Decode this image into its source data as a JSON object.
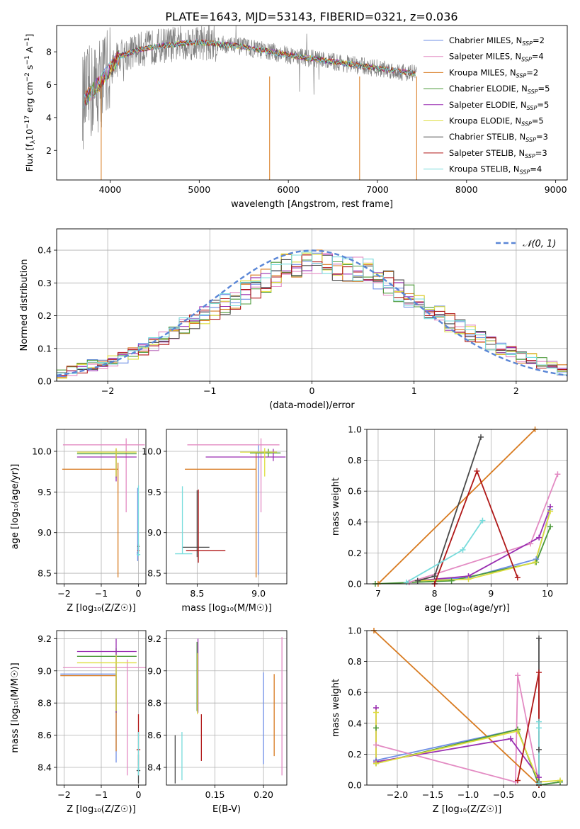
{
  "title": "PLATE=1643, MJD=53143, FIBERID=0321, z=0.036",
  "colors": {
    "Chabrier MILES": "#6f8fe6",
    "Salpeter MILES": "#e38bc3",
    "Kroupa MILES": "#d87a1f",
    "Chabrier ELODIE": "#4c9a3a",
    "Salpeter ELODIE": "#9a2fb2",
    "Kroupa ELODIE": "#dede3e",
    "Chabrier STELIB": "#4a4a4a",
    "Salpeter STELIB": "#b01818",
    "Kroupa STELIB": "#78dcdc"
  },
  "chart_data": [
    {
      "id": "spectrum",
      "type": "line",
      "xlabel": "wavelength [Angstrom, rest frame]",
      "ylabel": "Flux [f",
      "xlim": [
        3400,
        9130
      ],
      "ylim": [
        0.2,
        9.6
      ],
      "xticks": [
        4000,
        5000,
        6000,
        7000,
        8000,
        9000
      ],
      "yticks": [
        2,
        4,
        6,
        8
      ],
      "legend_position": "upper-right",
      "data_observed": {
        "x_range": [
          3690,
          7440
        ],
        "approx_level": [
          [
            3700,
            5.0
          ],
          [
            3900,
            6.2
          ],
          [
            4100,
            7.7
          ],
          [
            4300,
            8.1
          ],
          [
            4600,
            8.4
          ],
          [
            5000,
            8.6
          ],
          [
            5500,
            8.3
          ],
          [
            6000,
            7.8
          ],
          [
            6500,
            7.4
          ],
          [
            7000,
            7.0
          ],
          [
            7400,
            6.7
          ]
        ]
      },
      "series": [
        {
          "name": "Chabrier MILES",
          "nssp": "2"
        },
        {
          "name": "Salpeter MILES",
          "nssp": "4"
        },
        {
          "name": "Kroupa MILES",
          "nssp": "2"
        },
        {
          "name": "Chabrier ELODIE",
          "nssp": "5"
        },
        {
          "name": "Salpeter ELODIE",
          "nssp": "5"
        },
        {
          "name": "Kroupa ELODIE",
          "nssp": "5"
        },
        {
          "name": "Chabrier STELIB",
          "nssp": "3"
        },
        {
          "name": "Salpeter STELIB",
          "nssp": "3"
        },
        {
          "name": "Kroupa STELIB",
          "nssp": "4"
        }
      ]
    },
    {
      "id": "residuals",
      "type": "histogram",
      "xlabel": "(data-model)/error",
      "ylabel": "Normed distribution",
      "xlim": [
        -2.5,
        2.5
      ],
      "ylim": [
        0,
        0.465
      ],
      "xticks": [
        -2,
        -1,
        0,
        1,
        2
      ],
      "yticks": [
        0.0,
        0.1,
        0.2,
        0.3,
        0.4
      ],
      "grid": true,
      "legend_position": "upper-right",
      "legend_label": "𝒩(0, 1)",
      "bin_edges_range": [
        -2.5,
        2.5
      ],
      "bin_count": 50,
      "envelope_mid": [
        0.025,
        0.03,
        0.04,
        0.05,
        0.055,
        0.06,
        0.07,
        0.085,
        0.1,
        0.115,
        0.13,
        0.15,
        0.17,
        0.185,
        0.2,
        0.215,
        0.235,
        0.25,
        0.27,
        0.29,
        0.31,
        0.33,
        0.345,
        0.355,
        0.36,
        0.36,
        0.355,
        0.35,
        0.345,
        0.34,
        0.33,
        0.315,
        0.3,
        0.28,
        0.26,
        0.24,
        0.22,
        0.2,
        0.18,
        0.16,
        0.145,
        0.13,
        0.115,
        0.1,
        0.09,
        0.075,
        0.065,
        0.055,
        0.045,
        0.035
      ]
    },
    {
      "id": "age-vs-Z",
      "type": "errorbar",
      "xlabel": "Z [log₁₀(Z/Z☉)]",
      "ylabel": "age  [log₁₀(age/yr)]",
      "xlim": [
        -2.2,
        0.2
      ],
      "ylim": [
        8.37,
        10.27
      ],
      "xticks": [
        -2,
        -1,
        0
      ],
      "yticks": [
        8.5,
        9.0,
        9.5,
        10.0
      ],
      "grid": true,
      "points": [
        {
          "series": "Chabrier MILES",
          "x": -0.02,
          "y": 8.75,
          "xerr": [
            0.03,
            0.03
          ],
          "yerr": [
            0.1,
            0.8
          ]
        },
        {
          "series": "Salpeter MILES",
          "x": -0.33,
          "y": 10.08,
          "xerr": [
            1.7,
            0.5
          ],
          "yerr": [
            0.83,
            0.08
          ]
        },
        {
          "series": "Kroupa MILES",
          "x": -0.55,
          "y": 9.78,
          "xerr": [
            1.5,
            0.0
          ],
          "yerr": [
            1.33,
            0.08
          ]
        },
        {
          "series": "Chabrier ELODIE",
          "x": -0.6,
          "y": 9.97,
          "xerr": [
            1.05,
            0.55
          ],
          "yerr": [
            0.3,
            0.05
          ]
        },
        {
          "series": "Salpeter ELODIE",
          "x": -0.6,
          "y": 9.93,
          "xerr": [
            1.05,
            0.55
          ],
          "yerr": [
            0.3,
            0.1
          ]
        },
        {
          "series": "Kroupa ELODIE",
          "x": -0.6,
          "y": 9.99,
          "xerr": [
            1.05,
            0.55
          ],
          "yerr": [
            0.3,
            0.05
          ]
        },
        {
          "series": "Chabrier STELIB",
          "x": 0.0,
          "y": 8.83,
          "xerr": [
            0.03,
            0.03
          ],
          "yerr": [
            0.03,
            0.03
          ]
        },
        {
          "series": "Salpeter STELIB",
          "x": 0.0,
          "y": 8.78,
          "xerr": [
            0.03,
            0.03
          ],
          "yerr": [
            0.03,
            0.03
          ]
        },
        {
          "series": "Kroupa STELIB",
          "x": 0.0,
          "y": 8.73,
          "xerr": [
            0.05,
            0.05
          ],
          "yerr": [
            0.02,
            0.85
          ]
        }
      ]
    },
    {
      "id": "age-vs-mass",
      "type": "errorbar",
      "xlabel": "mass [log₁₀(M/M☉)]",
      "ylabel": "",
      "xlim": [
        8.25,
        9.23
      ],
      "ylim": [
        8.37,
        10.27
      ],
      "xticks": [
        8.5,
        9.0
      ],
      "yticks": [
        8.5,
        9.0,
        9.5,
        10.0
      ],
      "grid": true,
      "points": [
        {
          "series": "Chabrier MILES",
          "x": 9.0,
          "y": 9.98,
          "xerr": [
            0.02,
            0.1
          ],
          "yerr": [
            1.5,
            0.1
          ]
        },
        {
          "series": "Salpeter MILES",
          "x": 9.02,
          "y": 10.08,
          "xerr": [
            0.6,
            0.15
          ],
          "yerr": [
            0.83,
            0.08
          ]
        },
        {
          "series": "Kroupa MILES",
          "x": 8.98,
          "y": 9.78,
          "xerr": [
            0.58,
            0.0
          ],
          "yerr": [
            1.33,
            0.2
          ]
        },
        {
          "series": "Chabrier ELODIE",
          "x": 9.08,
          "y": 9.98,
          "xerr": [
            0.15,
            0.1
          ],
          "yerr": [
            0.05,
            0.05
          ]
        },
        {
          "series": "Salpeter ELODIE",
          "x": 9.12,
          "y": 9.93,
          "xerr": [
            0.55,
            0.1
          ],
          "yerr": [
            0.05,
            0.1
          ]
        },
        {
          "series": "Kroupa ELODIE",
          "x": 9.05,
          "y": 9.99,
          "xerr": [
            0.2,
            0.1
          ],
          "yerr": [
            0.3,
            0.05
          ]
        },
        {
          "series": "Chabrier STELIB",
          "x": 8.5,
          "y": 8.82,
          "xerr": [
            0.12,
            0.1
          ],
          "yerr": [
            0.12,
            0.7
          ]
        },
        {
          "series": "Salpeter STELIB",
          "x": 8.51,
          "y": 8.78,
          "xerr": [
            0.1,
            0.22
          ],
          "yerr": [
            0.15,
            0.75
          ]
        },
        {
          "series": "Kroupa STELIB",
          "x": 8.38,
          "y": 8.74,
          "xerr": [
            0.06,
            0.08
          ],
          "yerr": [
            0.0,
            0.83
          ]
        }
      ]
    },
    {
      "id": "mass-weight-vs-age",
      "type": "line",
      "xlabel": "age  [log₁₀(age/yr)]",
      "ylabel": "mass weight",
      "xlim": [
        6.8,
        10.35
      ],
      "ylim": [
        0,
        1
      ],
      "xticks": [
        7,
        8,
        9,
        10
      ],
      "yticks": [
        0.0,
        0.2,
        0.4,
        0.6,
        0.8,
        1.0
      ],
      "grid": true,
      "series": [
        {
          "name": "Chabrier MILES",
          "x": [
            7.7,
            8.6,
            9.8,
            10.05
          ],
          "y": [
            0.02,
            0.04,
            0.16,
            0.48
          ]
        },
        {
          "name": "Salpeter MILES",
          "x": [
            7.55,
            9.7,
            10.18
          ],
          "y": [
            0.01,
            0.26,
            0.71
          ]
        },
        {
          "name": "Kroupa MILES",
          "x": [
            7.0,
            9.78
          ],
          "y": [
            0.0,
            1.0
          ]
        },
        {
          "name": "Chabrier ELODIE",
          "x": [
            6.95,
            8.3,
            9.8,
            10.05
          ],
          "y": [
            0.0,
            0.02,
            0.14,
            0.37
          ]
        },
        {
          "name": "Salpeter ELODIE",
          "x": [
            7.7,
            8.6,
            9.85,
            10.05
          ],
          "y": [
            0.02,
            0.05,
            0.3,
            0.5
          ]
        },
        {
          "name": "Kroupa ELODIE",
          "x": [
            7.7,
            8.6,
            9.78,
            10.05
          ],
          "y": [
            0.02,
            0.03,
            0.14,
            0.47
          ]
        },
        {
          "name": "Chabrier STELIB",
          "x": [
            7.7,
            8.0,
            8.82
          ],
          "y": [
            0.02,
            0.05,
            0.95
          ]
        },
        {
          "name": "Salpeter STELIB",
          "x": [
            8.0,
            8.75,
            9.47
          ],
          "y": [
            0.0,
            0.73,
            0.04
          ]
        },
        {
          "name": "Kroupa STELIB",
          "x": [
            7.5,
            8.5,
            8.85
          ],
          "y": [
            0.01,
            0.22,
            0.41
          ]
        }
      ]
    },
    {
      "id": "mass-vs-Z",
      "type": "errorbar",
      "xlabel": "Z [log₁₀(Z/Z☉)]",
      "ylabel": "mass [log₁₀(M/M☉)]",
      "xlim": [
        -2.2,
        0.2
      ],
      "ylim": [
        8.29,
        9.25
      ],
      "xticks": [
        -2,
        -1,
        0
      ],
      "yticks": [
        8.4,
        8.6,
        8.8,
        9.0,
        9.2
      ],
      "grid": true,
      "points": [
        {
          "series": "Chabrier MILES",
          "x": -0.6,
          "y": 8.98,
          "xerr": [
            1.5,
            0.0
          ],
          "yerr": [
            0.55,
            0.0
          ]
        },
        {
          "series": "Salpeter MILES",
          "x": -0.3,
          "y": 9.02,
          "xerr": [
            1.73,
            0.5
          ],
          "yerr": [
            0.67,
            0.05
          ]
        },
        {
          "series": "Kroupa MILES",
          "x": -0.6,
          "y": 8.97,
          "xerr": [
            1.5,
            0.0
          ],
          "yerr": [
            0.47,
            0.0
          ]
        },
        {
          "series": "Chabrier ELODIE",
          "x": -0.6,
          "y": 9.09,
          "xerr": [
            1.05,
            0.55
          ],
          "yerr": [
            0.35,
            0.05
          ]
        },
        {
          "series": "Salpeter ELODIE",
          "x": -0.6,
          "y": 9.12,
          "xerr": [
            1.05,
            0.55
          ],
          "yerr": [
            0.38,
            0.08
          ]
        },
        {
          "series": "Kroupa ELODIE",
          "x": -0.6,
          "y": 9.05,
          "xerr": [
            1.05,
            0.55
          ],
          "yerr": [
            0.3,
            0.05
          ]
        },
        {
          "series": "Chabrier STELIB",
          "x": 0.0,
          "y": 8.38,
          "xerr": [
            0.05,
            0.05
          ],
          "yerr": [
            0.08,
            0.1
          ]
        },
        {
          "series": "Salpeter STELIB",
          "x": 0.0,
          "y": 8.51,
          "xerr": [
            0.05,
            0.05
          ],
          "yerr": [
            0.1,
            0.22
          ]
        },
        {
          "series": "Kroupa STELIB",
          "x": 0.0,
          "y": 8.39,
          "xerr": [
            0.03,
            0.03
          ],
          "yerr": [
            0.04,
            0.23
          ]
        }
      ]
    },
    {
      "id": "mass-vs-ebv",
      "type": "errorbar",
      "xlabel": "E(B-V)",
      "ylabel": "",
      "xlim": [
        0.1,
        0.224
      ],
      "ylim": [
        8.29,
        9.25
      ],
      "xticks": [
        0.15,
        0.2
      ],
      "yticks": [
        8.4,
        8.6,
        8.8,
        9.0,
        9.2
      ],
      "grid": true,
      "points": [
        {
          "series": "Chabrier MILES",
          "x": 0.2,
          "y": 8.7,
          "yerr": [
            0.28,
            0.29
          ]
        },
        {
          "series": "Salpeter MILES",
          "x": 0.219,
          "y": 8.78,
          "yerr": [
            0.43,
            0.43
          ]
        },
        {
          "series": "Kroupa MILES",
          "x": 0.211,
          "y": 8.72,
          "yerr": [
            0.25,
            0.26
          ]
        },
        {
          "series": "Chabrier ELODIE",
          "x": 0.1315,
          "y": 9.0,
          "yerr": [
            0.25,
            0.18
          ]
        },
        {
          "series": "Salpeter ELODIE",
          "x": 0.1325,
          "y": 9.04,
          "yerr": [
            0.3,
            0.16
          ]
        },
        {
          "series": "Kroupa ELODIE",
          "x": 0.132,
          "y": 8.93,
          "yerr": [
            0.2,
            0.18
          ]
        },
        {
          "series": "Chabrier STELIB",
          "x": 0.109,
          "y": 8.45,
          "yerr": [
            0.15,
            0.15
          ]
        },
        {
          "series": "Salpeter STELIB",
          "x": 0.136,
          "y": 8.58,
          "yerr": [
            0.14,
            0.15
          ]
        },
        {
          "series": "Kroupa STELIB",
          "x": 0.116,
          "y": 8.47,
          "yerr": [
            0.15,
            0.15
          ]
        }
      ]
    },
    {
      "id": "mass-weight-vs-Z",
      "type": "line",
      "xlabel": "Z [log₁₀(Z/Z☉)]",
      "ylabel": "mass weight",
      "xlim": [
        -2.43,
        0.4
      ],
      "ylim": [
        0,
        1
      ],
      "xticks": [
        -2.0,
        -1.5,
        -1.0,
        -0.5,
        0.0
      ],
      "yticks": [
        0.0,
        0.2,
        0.4,
        0.6,
        0.8,
        1.0
      ],
      "grid": true,
      "series": [
        {
          "name": "Chabrier MILES",
          "x": [
            -2.3,
            -0.3,
            0.0,
            0.3
          ],
          "y": [
            0.16,
            0.36,
            0.0,
            0.02
          ]
        },
        {
          "name": "Salpeter MILES",
          "x": [
            -2.3,
            -0.33,
            -0.3,
            0.0
          ],
          "y": [
            0.26,
            0.02,
            0.71,
            0.01
          ]
        },
        {
          "name": "Kroupa MILES",
          "x": [
            -2.33,
            0.0
          ],
          "y": [
            1.0,
            0.0
          ]
        },
        {
          "name": "Chabrier ELODIE",
          "x": [
            -2.3,
            -2.3,
            -0.3,
            0.0,
            0.3
          ],
          "y": [
            0.37,
            0.14,
            0.36,
            0.0,
            0.02
          ]
        },
        {
          "name": "Salpeter ELODIE",
          "x": [
            -2.3,
            -2.3,
            -0.4,
            0.0
          ],
          "y": [
            0.5,
            0.15,
            0.3,
            0.05
          ]
        },
        {
          "name": "Kroupa ELODIE",
          "x": [
            -2.3,
            -2.3,
            -0.3,
            0.0,
            0.3
          ],
          "y": [
            0.47,
            0.14,
            0.35,
            0.02,
            0.03
          ]
        },
        {
          "name": "Chabrier STELIB",
          "x": [
            0.0,
            0.0,
            0.0
          ],
          "y": [
            0.95,
            0.23,
            0.02
          ]
        },
        {
          "name": "Salpeter STELIB",
          "x": [
            -0.3,
            0.0,
            0.0
          ],
          "y": [
            0.03,
            0.73,
            0.0
          ]
        },
        {
          "name": "Kroupa STELIB",
          "x": [
            0.0,
            0.0,
            0.0
          ],
          "y": [
            0.41,
            0.37,
            0.01
          ]
        }
      ]
    }
  ]
}
